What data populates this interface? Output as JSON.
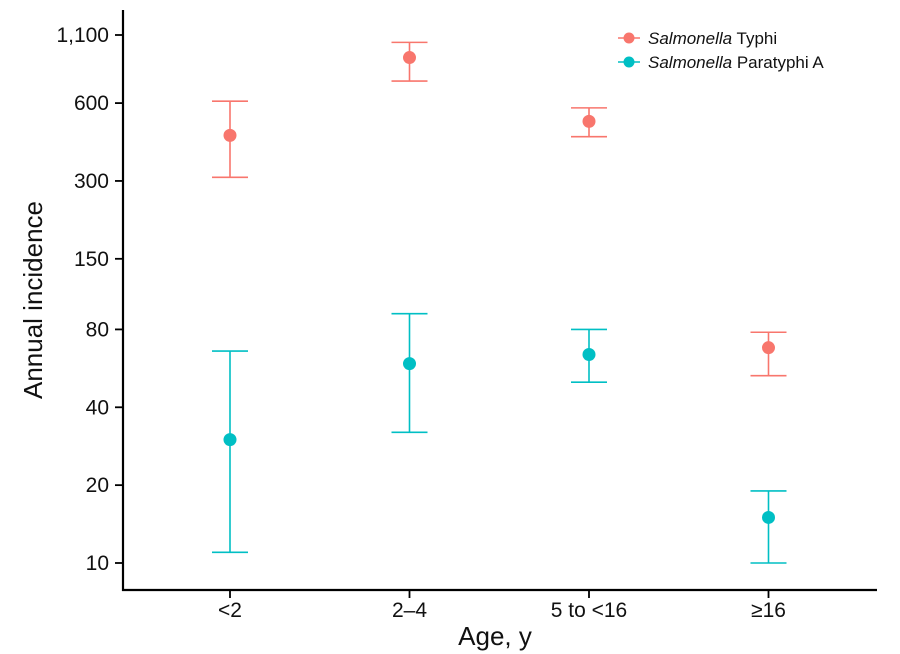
{
  "chart_data": {
    "type": "scatter",
    "title": "",
    "xlabel": "Age, y",
    "ylabel": "Annual incidence",
    "yscale": "log",
    "ylim": [
      8.5,
      1300
    ],
    "categories": [
      "<2",
      "2–4",
      "5 to <16",
      "≥16"
    ],
    "yticks": [
      10,
      20,
      40,
      80,
      150,
      300,
      600,
      1100
    ],
    "ytick_labels": [
      "10",
      "20",
      "40",
      "80",
      "150",
      "300",
      "600",
      "1,100"
    ],
    "legend_position": "top-right",
    "series": [
      {
        "name_italic": "Salmonella",
        "name_rest": " Typhi",
        "color": "#F8766D",
        "values": [
          450,
          900,
          510,
          null
        ],
        "lower": [
          310,
          730,
          445,
          null
        ],
        "upper": [
          610,
          1030,
          575,
          null
        ],
        "extra_points": [
          {
            "category": "≥16",
            "value": 68,
            "lower": 53,
            "upper": 78
          }
        ]
      },
      {
        "name_italic": "Salmonella",
        "name_rest": " Paratyphi A",
        "color": "#00BFC4",
        "values": [
          30,
          59,
          64,
          15
        ],
        "lower": [
          11,
          32,
          50,
          10
        ],
        "upper": [
          66,
          92,
          80,
          19
        ]
      }
    ]
  }
}
